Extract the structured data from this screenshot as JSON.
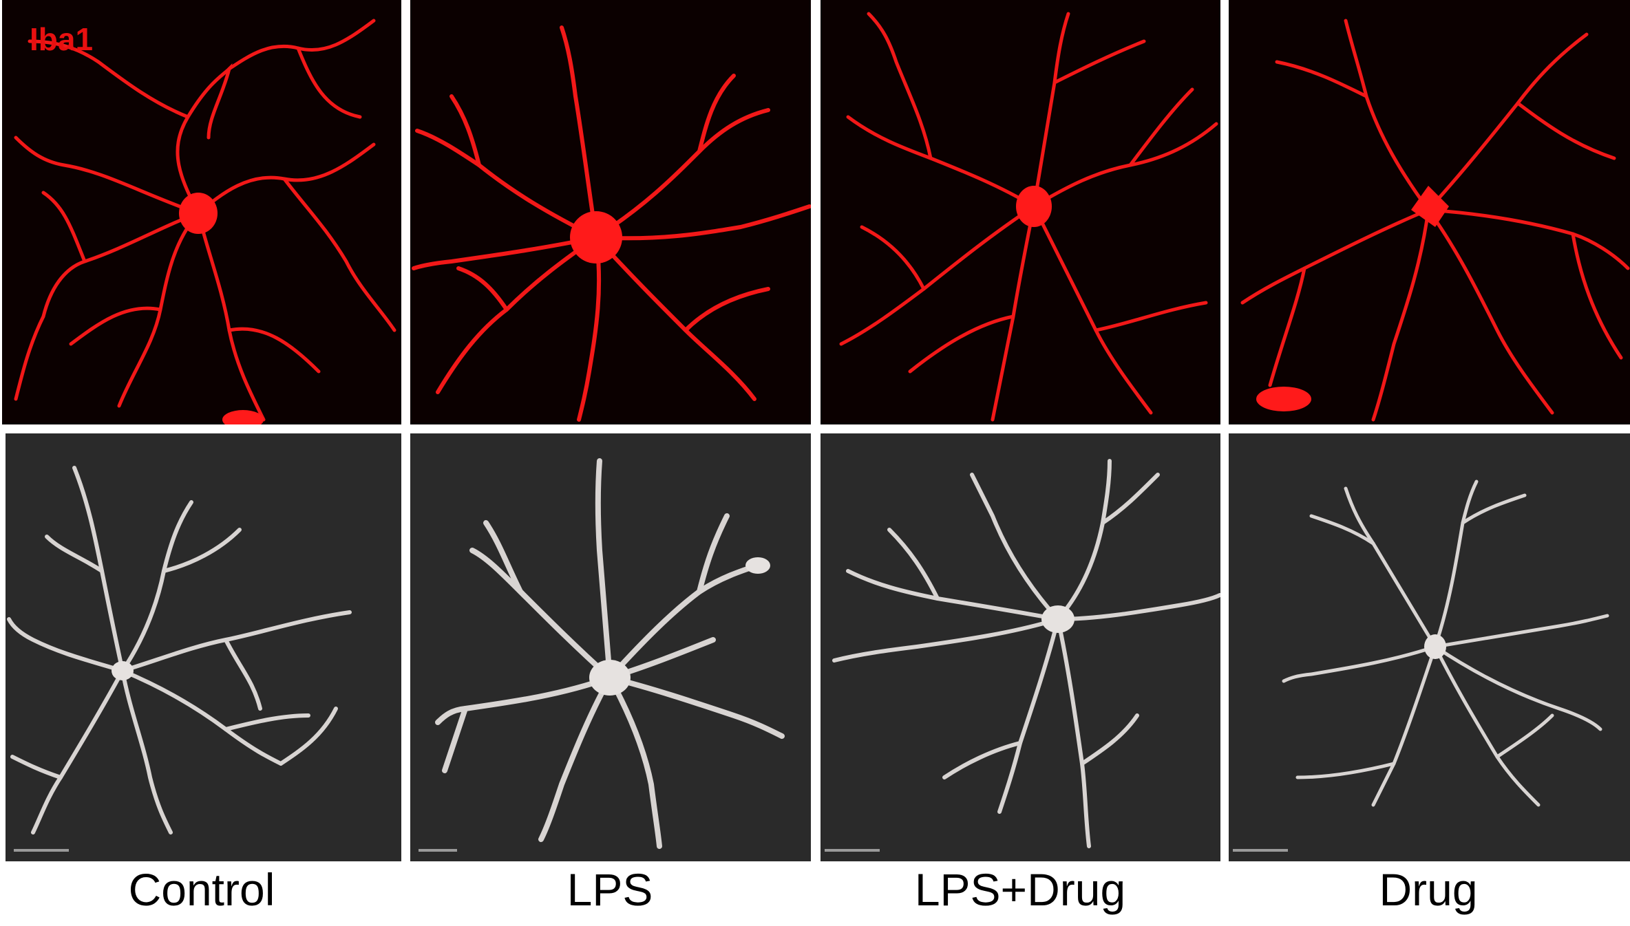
{
  "figure": {
    "marker_label": "Iba1",
    "conditions": [
      "Control",
      "LPS",
      "LPS+Drug",
      "Drug"
    ],
    "colors": {
      "stain_background": "#0b0000",
      "stain_signal": "#ff1a1a",
      "reconstruction_background": "#2a2a2a",
      "reconstruction_cell": "#d8d4d2"
    }
  }
}
